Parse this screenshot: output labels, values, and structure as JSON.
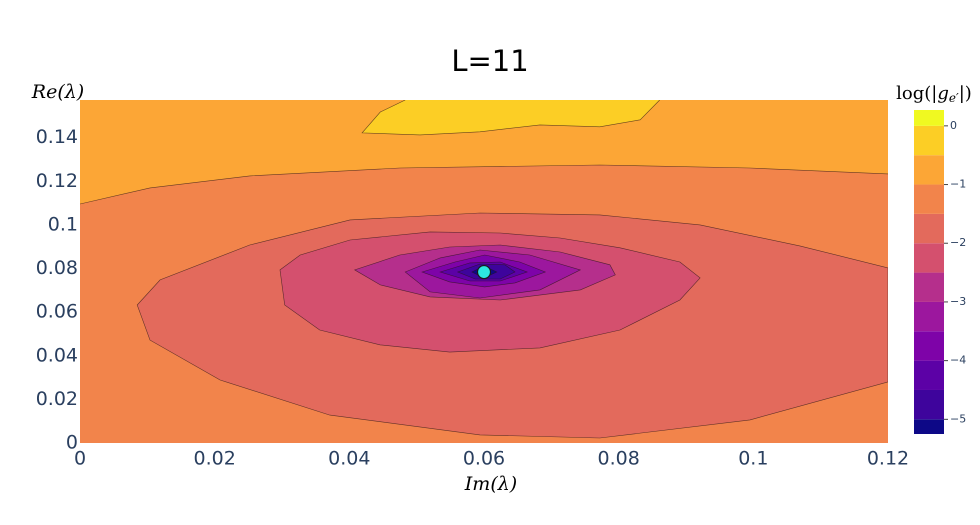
{
  "chart_data": {
    "type": "contour",
    "title": "L=11",
    "x_label": "Im(λ)",
    "y_label": "Re(λ)",
    "colorbar_title": [
      "log(|",
      "g",
      "e′",
      "|)"
    ],
    "xlim": [
      0,
      0.12
    ],
    "ylim": [
      0,
      0.1573
    ],
    "xticks": [
      0,
      0.02,
      0.04,
      0.06,
      0.08,
      0.1,
      0.12
    ],
    "yticks": [
      0,
      0.02,
      0.04,
      0.06,
      0.08,
      0.1,
      0.12,
      0.14
    ],
    "zlim": [
      -5.25,
      0.27
    ],
    "zticks": [
      {
        "value": 0,
        "label": "0"
      },
      {
        "value": -1,
        "label": "−1"
      },
      {
        "value": -2,
        "label": "−2"
      },
      {
        "value": -3,
        "label": "−3"
      },
      {
        "value": -4,
        "label": "−4"
      },
      {
        "value": -5,
        "label": "−5"
      }
    ],
    "levels": [
      -5,
      -4.5,
      -4,
      -3.5,
      -3,
      -2.5,
      -2,
      -1.5,
      -1,
      -0.5,
      0
    ],
    "colors": [
      "#0d0887",
      "#3e049c",
      "#5c01a6",
      "#7e03a8",
      "#9c179e",
      "#b52f8c",
      "#d4506e",
      "#e36a5c",
      "#f2844b",
      "#fca636",
      "#fcce25",
      "#f0f921"
    ],
    "contours": [
      {
        "level": -1,
        "fill": "above",
        "x": [
          0,
          0.0104,
          0.0252,
          0.0475,
          0.0772,
          0.0995,
          0.12
        ],
        "y": [
          0.1096,
          0.117,
          0.1225,
          0.1261,
          0.1275,
          0.1261,
          0.1234
        ]
      },
      {
        "level": -0.5,
        "fill": "above",
        "x": [
          0.0483,
          0.0446,
          0.0419,
          0.0505,
          0.0594,
          0.0683,
          0.0772,
          0.0832,
          0.0861
        ],
        "y": [
          0.1573,
          0.1518,
          0.1422,
          0.1413,
          0.1427,
          0.1459,
          0.145,
          0.1482,
          0.1573
        ]
      },
      {
        "level": -1.5,
        "fill": "below",
        "x": [
          0.12,
          0.1069,
          0.0921,
          0.0772,
          0.0594,
          0.0401,
          0.0252,
          0.0119,
          0.0085,
          0.0104,
          0.0208,
          0.0371,
          0.0594,
          0.0772,
          0.0995,
          0.12
        ],
        "y": [
          0.0803,
          0.0904,
          0.1,
          0.1046,
          0.1055,
          0.1023,
          0.0908,
          0.0748,
          0.0633,
          0.0472,
          0.0289,
          0.0128,
          0.0037,
          0.0023,
          0.0106,
          0.028
        ]
      },
      {
        "level": -2,
        "fill": "below",
        "x": [
          0.0297,
          0.0327,
          0.0401,
          0.052,
          0.0624,
          0.0713,
          0.0802,
          0.0891,
          0.0921,
          0.0891,
          0.0802,
          0.0683,
          0.0549,
          0.0446,
          0.0356,
          0.0304
        ],
        "y": [
          0.0794,
          0.0862,
          0.0931,
          0.0968,
          0.0963,
          0.094,
          0.0895,
          0.083,
          0.0757,
          0.0656,
          0.0518,
          0.0436,
          0.0417,
          0.045,
          0.0518,
          0.0633
        ]
      },
      {
        "level": -2.5,
        "fill": "below",
        "x": [
          0.0408,
          0.0475,
          0.0549,
          0.0624,
          0.0713,
          0.0787,
          0.0795,
          0.0743,
          0.0624,
          0.052,
          0.0446
        ],
        "y": [
          0.0794,
          0.0862,
          0.0899,
          0.0908,
          0.0876,
          0.0817,
          0.0771,
          0.0702,
          0.0656,
          0.067,
          0.0725
        ]
      },
      {
        "level": -3,
        "fill": "below",
        "x": [
          0.0483,
          0.0535,
          0.0594,
          0.0668,
          0.0743,
          0.0683,
          0.0594,
          0.052
        ],
        "y": [
          0.0784,
          0.0849,
          0.0885,
          0.0862,
          0.0794,
          0.0702,
          0.0665,
          0.0693
        ]
      },
      {
        "level": -3.5,
        "fill": "below",
        "x": [
          0.0508,
          0.0557,
          0.0601,
          0.0653,
          0.0691,
          0.0646,
          0.0601,
          0.0549
        ],
        "y": [
          0.0784,
          0.083,
          0.0862,
          0.083,
          0.0784,
          0.0734,
          0.0716,
          0.0739
        ]
      },
      {
        "level": -4,
        "fill": "below",
        "x": [
          0.0535,
          0.0579,
          0.0624,
          0.0664,
          0.0624,
          0.0579
        ],
        "y": [
          0.0784,
          0.0826,
          0.083,
          0.0784,
          0.0743,
          0.0743
        ]
      },
      {
        "level": -4.5,
        "fill": "below",
        "x": [
          0.0561,
          0.0594,
          0.0631,
          0.0646,
          0.0624,
          0.0587
        ],
        "y": [
          0.0784,
          0.0821,
          0.0817,
          0.0784,
          0.0752,
          0.0752
        ]
      },
      {
        "level": -5,
        "fill": "below",
        "x": [
          0.0582,
          0.06,
          0.0619,
          0.06
        ],
        "y": [
          0.0784,
          0.0812,
          0.0784,
          0.0757
        ]
      }
    ],
    "marker": {
      "x": 0.06,
      "y": 0.0784,
      "color": "#2de6e0"
    }
  }
}
